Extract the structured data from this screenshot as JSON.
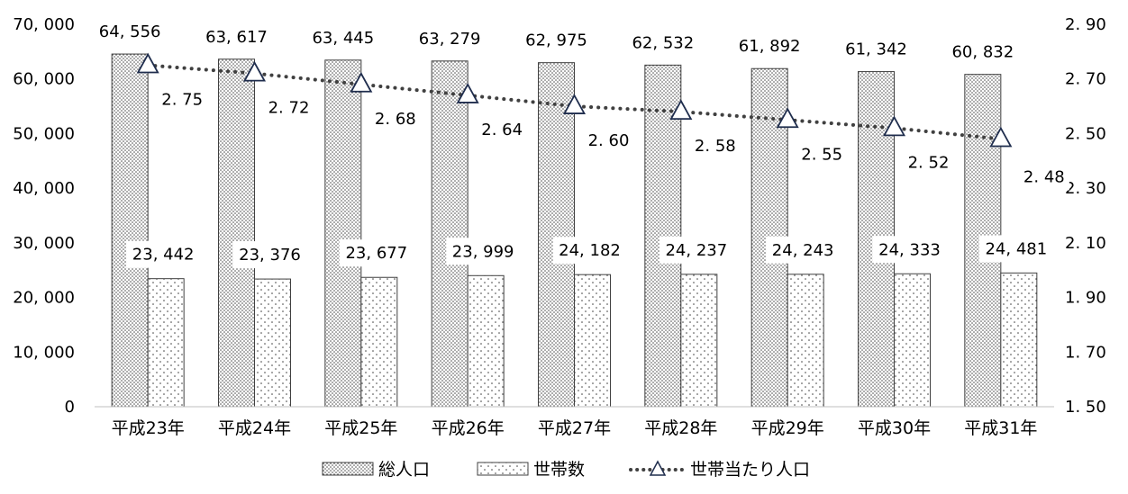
{
  "chart_data": {
    "type": "bar",
    "categories": [
      "平成23年",
      "平成24年",
      "平成25年",
      "平成26年",
      "平成27年",
      "平成28年",
      "平成29年",
      "平成30年",
      "平成31年"
    ],
    "series": [
      {
        "name": "総人口",
        "type": "bar",
        "axis": "left",
        "values": [
          64556,
          63617,
          63445,
          63279,
          62975,
          62532,
          61892,
          61342,
          60832
        ],
        "labels": [
          "64, 556",
          "63, 617",
          "63, 445",
          "63, 279",
          "62, 975",
          "62, 532",
          "61, 892",
          "61, 342",
          "60, 832"
        ],
        "pattern": "dense-dots"
      },
      {
        "name": "世帯数",
        "type": "bar",
        "axis": "left",
        "values": [
          23442,
          23376,
          23677,
          23999,
          24182,
          24237,
          24243,
          24333,
          24481
        ],
        "labels": [
          "23, 442",
          "23, 376",
          "23, 677",
          "23, 999",
          "24, 182",
          "24, 237",
          "24, 243",
          "24, 333",
          "24, 481"
        ],
        "pattern": "sparse-dots"
      },
      {
        "name": "世帯当たり人口",
        "type": "line",
        "axis": "right",
        "values": [
          2.75,
          2.72,
          2.68,
          2.64,
          2.6,
          2.58,
          2.55,
          2.52,
          2.48
        ],
        "labels": [
          "2. 75",
          "2. 72",
          "2. 68",
          "2. 64",
          "2. 60",
          "2. 58",
          "2. 55",
          "2. 52",
          "2. 48"
        ],
        "marker": "triangle",
        "line_style": "dotted"
      }
    ],
    "y_left": {
      "range": [
        0,
        70000
      ],
      "ticks": [
        0,
        10000,
        20000,
        30000,
        40000,
        50000,
        60000,
        70000
      ],
      "tick_labels": [
        "0",
        "10, 000",
        "20, 000",
        "30, 000",
        "40, 000",
        "50, 000",
        "60, 000",
        "70, 000"
      ]
    },
    "y_right": {
      "range": [
        1.5,
        2.9
      ],
      "ticks": [
        1.5,
        1.7,
        1.9,
        2.1,
        2.3,
        2.5,
        2.7,
        2.9
      ],
      "tick_labels": [
        "1. 50",
        "1. 70",
        "1. 90",
        "2. 10",
        "2. 30",
        "2. 50",
        "2. 70",
        "2. 90"
      ]
    },
    "grid": false,
    "legend": {
      "position": "bottom",
      "entries": [
        "総人口",
        "世帯数",
        "世帯当たり人口"
      ]
    },
    "colors": {
      "bar_stroke": "#404040",
      "line": "#404040",
      "marker_stroke": "#1f2d4d",
      "marker_fill": "#ffffff"
    }
  }
}
